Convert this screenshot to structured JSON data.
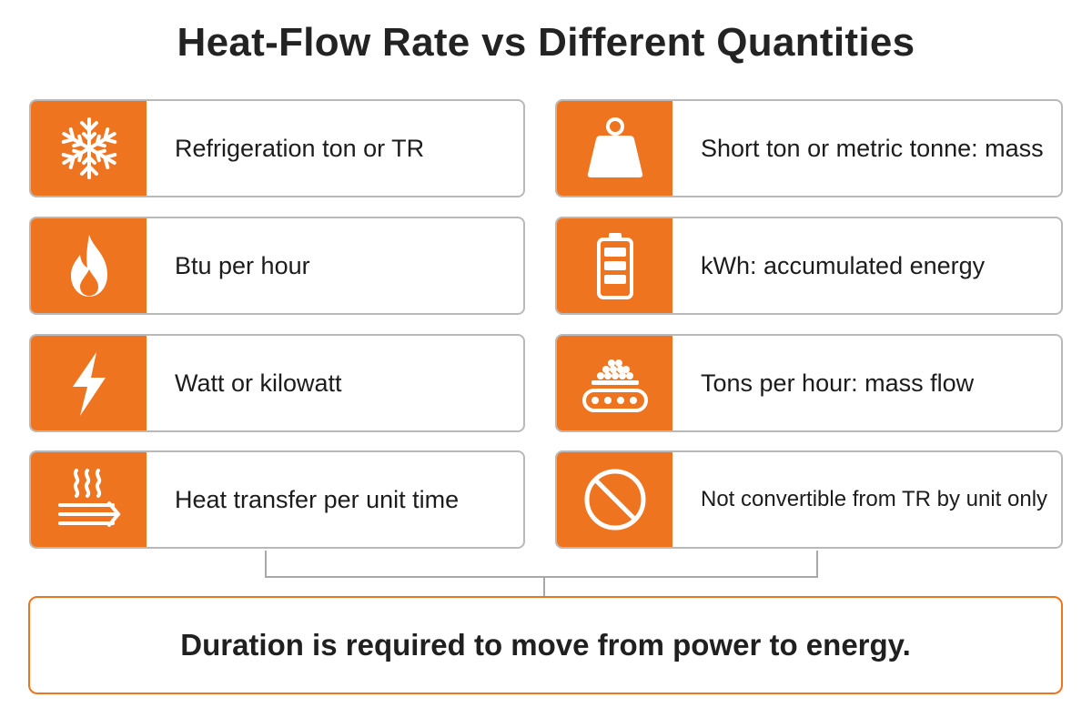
{
  "title": "Heat-Flow Rate vs Different Quantities",
  "accent_color": "#ee7420",
  "left_items": [
    {
      "label": "Refrigeration ton or TR",
      "icon": "snowflake-icon"
    },
    {
      "label": "Btu per hour",
      "icon": "flame-icon"
    },
    {
      "label": "Watt or kilowatt",
      "icon": "lightning-bolt-icon"
    },
    {
      "label": "Heat transfer per unit time",
      "icon": "heat-waves-arrow-icon"
    }
  ],
  "right_items": [
    {
      "label": "Short ton or metric tonne: mass",
      "icon": "weight-icon"
    },
    {
      "label": "kWh: accumulated energy",
      "icon": "battery-icon"
    },
    {
      "label": "Tons per hour: mass flow",
      "icon": "conveyor-belt-icon"
    },
    {
      "label": "Not convertible from TR by unit only",
      "icon": "prohibited-icon"
    }
  ],
  "footer": "Duration is required to move from power to energy."
}
